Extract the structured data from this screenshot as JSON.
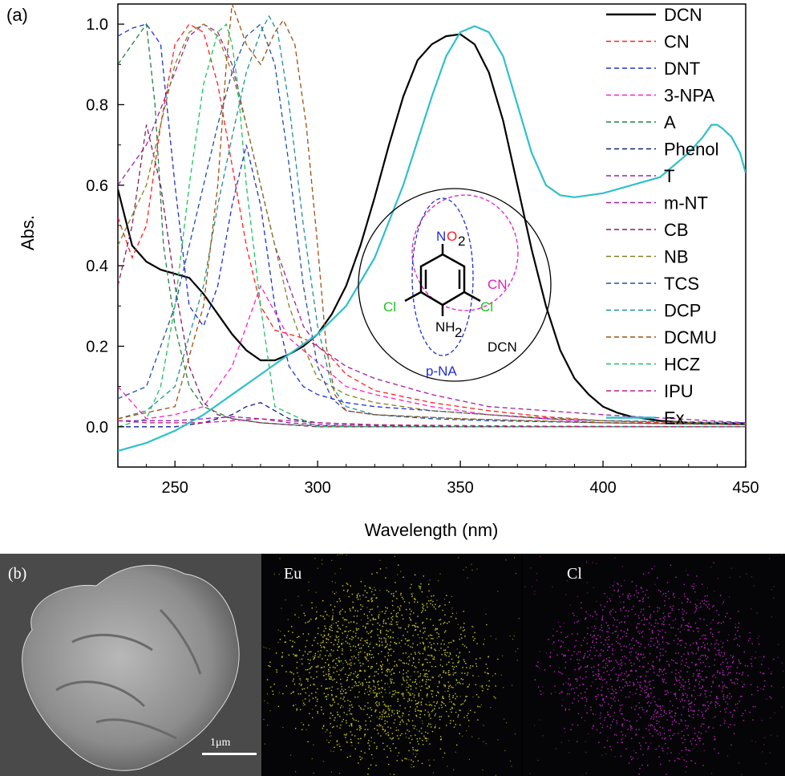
{
  "panel_a_label": "(a)",
  "panel_b_label": "(b)",
  "colors": {
    "DCN": "#000000",
    "CN": "#ff2020",
    "DNT": "#2030d0",
    "3-NPA": "#ff20c0",
    "A": "#208040",
    "Phenol": "#102080",
    "T": "#9020c0",
    "m-NT": "#a020a0",
    "CB": "#802060",
    "NB": "#808020",
    "TCS": "#2050a0",
    "DCP": "#209090",
    "DCMU": "#a05010",
    "HCZ": "#20c060",
    "IPU": "#c02080",
    "Ex": "#30c0c8"
  },
  "inset": {
    "group_labels": [
      "CN",
      "DCN",
      "p-NA"
    ],
    "atom_labels": {
      "nitro_n": "N",
      "nitro_o": "O",
      "nitro_sub": "2",
      "amine": "NH",
      "amine_sub": "2",
      "cl_left": "Cl",
      "cl_right": "Cl"
    },
    "colors": {
      "CN": "#e020c0",
      "p-NA": "#2030d0",
      "Cl": "#20c020",
      "NO2_N": "#2030d0",
      "NO2_O": "#ff2020"
    }
  },
  "images": {
    "eu_label": "Eu",
    "cl_label": "Cl",
    "scale_label": "1μm"
  },
  "chart_data": {
    "type": "line",
    "xlabel": "Wavelength (nm)",
    "ylabel": "Abs.",
    "xlim": [
      230,
      450
    ],
    "ylim": [
      -0.1,
      1.05
    ],
    "xticks": [
      250,
      300,
      350,
      400,
      450
    ],
    "yticks": [
      0.0,
      0.2,
      0.4,
      0.6,
      0.8,
      1.0
    ],
    "legend_position": "right",
    "series": [
      {
        "name": "DCN",
        "style": "solid",
        "x": [
          230,
          235,
          240,
          245,
          250,
          255,
          260,
          265,
          270,
          275,
          280,
          285,
          290,
          295,
          300,
          305,
          310,
          315,
          320,
          325,
          330,
          335,
          340,
          345,
          350,
          355,
          360,
          365,
          370,
          375,
          380,
          385,
          390,
          395,
          400,
          405,
          410,
          415,
          420,
          430,
          440,
          450
        ],
        "y": [
          0.59,
          0.45,
          0.41,
          0.39,
          0.38,
          0.37,
          0.33,
          0.28,
          0.23,
          0.19,
          0.165,
          0.165,
          0.18,
          0.2,
          0.23,
          0.28,
          0.35,
          0.45,
          0.57,
          0.7,
          0.82,
          0.91,
          0.95,
          0.97,
          0.975,
          0.95,
          0.88,
          0.76,
          0.6,
          0.44,
          0.3,
          0.19,
          0.12,
          0.08,
          0.05,
          0.035,
          0.025,
          0.02,
          0.015,
          0.01,
          0.008,
          0.007
        ]
      },
      {
        "name": "CN",
        "style": "dash",
        "x": [
          230,
          235,
          240,
          245,
          250,
          255,
          260,
          265,
          270,
          275,
          280,
          285,
          290,
          295,
          300,
          305,
          310,
          320,
          340,
          360,
          380,
          400,
          420,
          450
        ],
        "y": [
          0.52,
          0.42,
          0.5,
          0.75,
          0.95,
          1.0,
          0.98,
          0.85,
          0.65,
          0.45,
          0.3,
          0.24,
          0.23,
          0.22,
          0.2,
          0.17,
          0.13,
          0.09,
          0.06,
          0.04,
          0.025,
          0.015,
          0.01,
          0.005
        ]
      },
      {
        "name": "DNT",
        "style": "dash",
        "x": [
          230,
          235,
          240,
          245,
          250,
          255,
          260,
          265,
          270,
          275,
          280,
          285,
          290,
          295,
          300,
          310,
          320,
          340,
          360,
          380,
          400,
          450
        ],
        "y": [
          0.97,
          0.99,
          1.0,
          0.95,
          0.6,
          0.3,
          0.25,
          0.35,
          0.55,
          0.7,
          0.55,
          0.3,
          0.15,
          0.1,
          0.08,
          0.06,
          0.05,
          0.04,
          0.03,
          0.02,
          0.015,
          0.01
        ]
      },
      {
        "name": "3-NPA",
        "style": "dash",
        "x": [
          230,
          240,
          250,
          260,
          270,
          280,
          290,
          300,
          310,
          320,
          340,
          360,
          380,
          400,
          420,
          450
        ],
        "y": [
          0.1,
          0.02,
          0.03,
          0.05,
          0.15,
          0.35,
          0.22,
          0.16,
          0.1,
          0.08,
          0.05,
          0.03,
          0.02,
          0.01,
          0.008,
          0.005
        ]
      },
      {
        "name": "A",
        "style": "dash",
        "x": [
          230,
          235,
          240,
          243,
          246,
          250,
          255,
          260,
          270,
          280,
          290,
          300,
          320,
          350,
          400,
          450
        ],
        "y": [
          0.9,
          0.95,
          1.0,
          0.8,
          0.45,
          0.25,
          0.1,
          0.05,
          0.02,
          0.01,
          0.005,
          0.003,
          0.0,
          0.0,
          0.0,
          0.0
        ]
      },
      {
        "name": "Phenol",
        "style": "dash",
        "x": [
          230,
          240,
          250,
          260,
          265,
          270,
          275,
          280,
          285,
          290,
          300,
          320,
          350,
          400,
          450
        ],
        "y": [
          0.0,
          0.0,
          0.0,
          0.01,
          0.02,
          0.03,
          0.05,
          0.06,
          0.04,
          0.02,
          0.01,
          0.005,
          0.0,
          0.0,
          0.0
        ]
      },
      {
        "name": "T",
        "style": "dash",
        "x": [
          230,
          240,
          250,
          260,
          270,
          280,
          290,
          300,
          320,
          350,
          400,
          450
        ],
        "y": [
          0.015,
          0.015,
          0.015,
          0.02,
          0.025,
          0.02,
          0.01,
          0.005,
          0.003,
          0.002,
          0.001,
          0.0
        ]
      },
      {
        "name": "m-NT",
        "style": "dash",
        "x": [
          230,
          240,
          250,
          255,
          260,
          265,
          270,
          275,
          280,
          285,
          290,
          295,
          300,
          310,
          320,
          340,
          360,
          400,
          450
        ],
        "y": [
          0.6,
          0.7,
          0.88,
          0.97,
          1.0,
          0.98,
          0.9,
          0.75,
          0.6,
          0.45,
          0.35,
          0.25,
          0.2,
          0.15,
          0.12,
          0.08,
          0.05,
          0.03,
          0.01
        ]
      },
      {
        "name": "CB",
        "style": "dash",
        "x": [
          230,
          235,
          240,
          245,
          250,
          255,
          260,
          265,
          270,
          280,
          290,
          300,
          350,
          450
        ],
        "y": [
          0.35,
          0.5,
          0.75,
          0.6,
          0.35,
          0.15,
          0.06,
          0.03,
          0.02,
          0.01,
          0.005,
          0.0,
          0.0,
          0.0
        ]
      },
      {
        "name": "NB",
        "style": "dash",
        "x": [
          230,
          240,
          250,
          255,
          260,
          265,
          270,
          275,
          280,
          285,
          290,
          295,
          300,
          310,
          320,
          340,
          360,
          400,
          450
        ],
        "y": [
          0.45,
          0.6,
          0.9,
          0.98,
          1.0,
          0.97,
          0.88,
          0.75,
          0.6,
          0.45,
          0.3,
          0.2,
          0.12,
          0.08,
          0.06,
          0.04,
          0.03,
          0.015,
          0.008
        ]
      },
      {
        "name": "TCS",
        "style": "dash",
        "x": [
          230,
          240,
          250,
          260,
          265,
          270,
          275,
          280,
          285,
          290,
          295,
          300,
          305,
          310,
          320,
          340,
          360,
          400,
          450
        ],
        "y": [
          0.07,
          0.1,
          0.3,
          0.6,
          0.75,
          0.88,
          0.97,
          1.0,
          0.9,
          0.65,
          0.35,
          0.15,
          0.07,
          0.04,
          0.03,
          0.02,
          0.015,
          0.01,
          0.005
        ]
      },
      {
        "name": "DCP",
        "style": "dash",
        "x": [
          230,
          240,
          250,
          260,
          265,
          270,
          275,
          280,
          283,
          286,
          290,
          295,
          300,
          305,
          310,
          320,
          350,
          400,
          450
        ],
        "y": [
          0.02,
          0.04,
          0.1,
          0.35,
          0.55,
          0.72,
          0.88,
          0.98,
          1.02,
          0.98,
          0.8,
          0.5,
          0.25,
          0.1,
          0.05,
          0.03,
          0.02,
          0.01,
          0.005
        ]
      },
      {
        "name": "DCMU",
        "style": "dash",
        "x": [
          230,
          250,
          260,
          265,
          268,
          270,
          275,
          280,
          285,
          288,
          292,
          296,
          300,
          303,
          306,
          310,
          320,
          350,
          400,
          450
        ],
        "y": [
          0.02,
          0.05,
          0.3,
          0.6,
          0.9,
          1.05,
          0.95,
          0.9,
          0.98,
          1.01,
          0.95,
          0.75,
          0.45,
          0.2,
          0.08,
          0.04,
          0.03,
          0.02,
          0.01,
          0.005
        ]
      },
      {
        "name": "HCZ",
        "style": "dash",
        "x": [
          230,
          240,
          245,
          250,
          255,
          260,
          265,
          268,
          270,
          272,
          275,
          280,
          285,
          300,
          350,
          450
        ],
        "y": [
          0.0,
          0.02,
          0.1,
          0.3,
          0.6,
          0.85,
          0.98,
          1.0,
          0.95,
          0.85,
          0.6,
          0.3,
          0.05,
          0.0,
          0.0,
          0.0
        ]
      },
      {
        "name": "IPU",
        "style": "dash",
        "x": [
          230,
          240,
          250,
          260,
          270,
          280,
          290,
          300,
          320,
          350,
          400,
          450
        ],
        "y": [
          0.015,
          0.01,
          0.01,
          0.01,
          0.015,
          0.02,
          0.015,
          0.01,
          0.005,
          0.003,
          0.0,
          0.0
        ]
      },
      {
        "name": "Ex",
        "style": "solid",
        "x": [
          230,
          240,
          250,
          260,
          270,
          280,
          290,
          300,
          310,
          320,
          330,
          340,
          345,
          350,
          355,
          360,
          365,
          370,
          375,
          380,
          385,
          390,
          395,
          400,
          410,
          420,
          430,
          435,
          438,
          440,
          442,
          445,
          448,
          450
        ],
        "y": [
          -0.06,
          -0.04,
          -0.01,
          0.03,
          0.08,
          0.13,
          0.18,
          0.23,
          0.3,
          0.42,
          0.6,
          0.82,
          0.92,
          0.98,
          0.995,
          0.98,
          0.92,
          0.8,
          0.68,
          0.6,
          0.575,
          0.57,
          0.575,
          0.58,
          0.6,
          0.62,
          0.68,
          0.72,
          0.75,
          0.75,
          0.74,
          0.72,
          0.68,
          0.63
        ]
      }
    ]
  }
}
